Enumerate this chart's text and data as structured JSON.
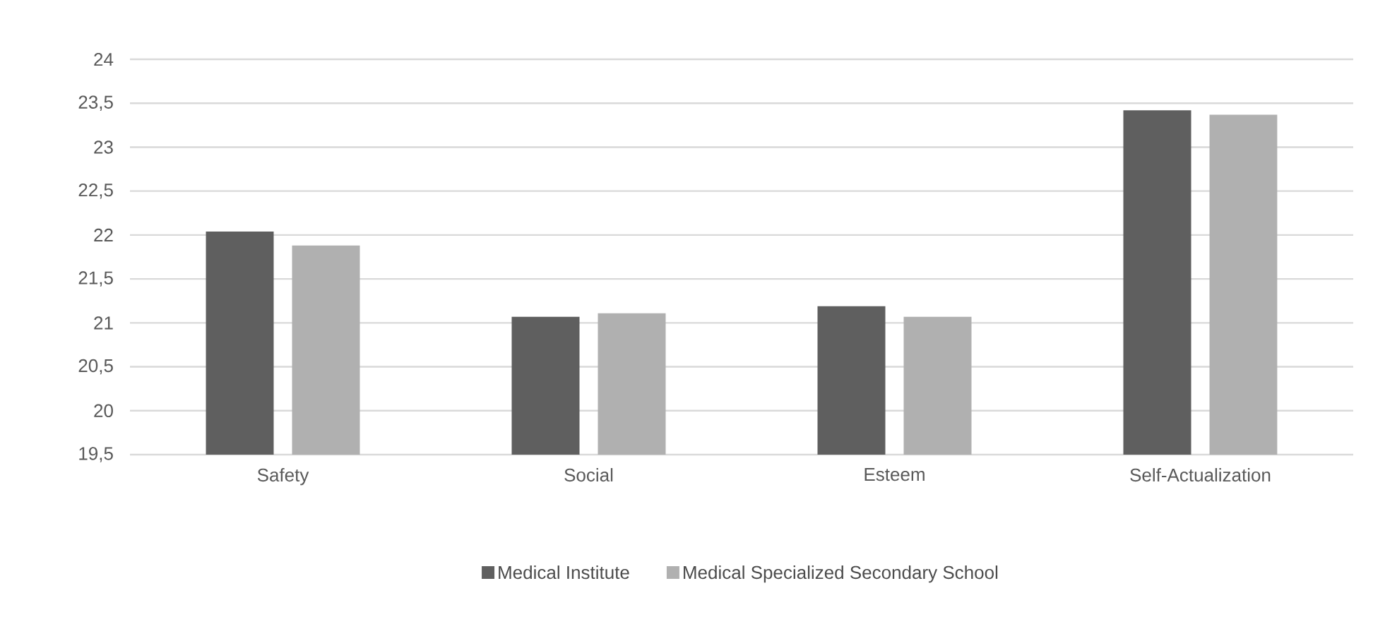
{
  "chart_data": {
    "type": "bar",
    "categories": [
      "Safety",
      "Social",
      "Esteem",
      "Self-Actualization"
    ],
    "series": [
      {
        "name": "Medical Institute",
        "color": "#5f5f5f",
        "values": [
          22.04,
          21.07,
          21.19,
          23.42
        ]
      },
      {
        "name": "Medical Specialized Secondary School",
        "color": "#b0b0b0",
        "values": [
          21.88,
          21.11,
          21.07,
          23.37
        ]
      }
    ],
    "ylim": [
      19.5,
      24
    ],
    "yticks": [
      {
        "value": 19.5,
        "label": "19,5"
      },
      20,
      {
        "value": 20.5,
        "label": "20,5"
      },
      21,
      {
        "value": 21.5,
        "label": "21,5"
      },
      22,
      {
        "value": 22.5,
        "label": "22,5"
      },
      23,
      {
        "value": 23.5,
        "label": "23,5"
      },
      24
    ],
    "grid": "y",
    "legend": "bottom"
  }
}
